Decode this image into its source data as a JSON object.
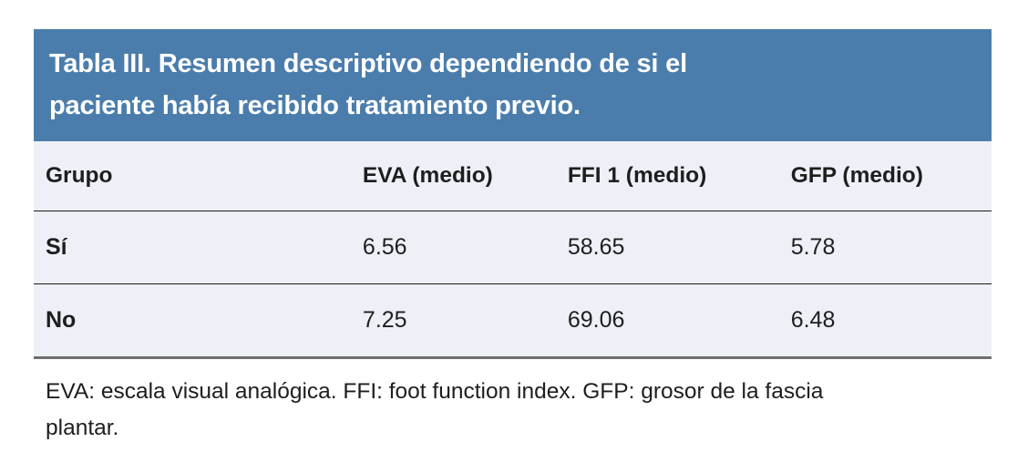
{
  "title": {
    "full_text": "Tabla III. Resumen descriptivo dependiendo de si el paciente había recibido tratamiento previo.",
    "lines": [
      "Tabla III. Resumen descriptivo dependiendo de si el",
      "paciente había recibido tratamiento previo."
    ]
  },
  "table": {
    "columns": [
      "Grupo",
      "EVA (medio)",
      "FFI 1 (medio)",
      "GFP (medio)"
    ],
    "rows": [
      [
        "Sí",
        "6.56",
        "58.65",
        "5.78"
      ],
      [
        "No",
        "7.25",
        "69.06",
        "6.48"
      ]
    ]
  },
  "footnote": {
    "full_text": "EVA: escala visual analógica. FFI: foot function index. GFP: grosor de la fascia plantar.",
    "lines": [
      "EVA: escala visual analógica. FFI: foot function index. GFP: grosor de la fascia",
      "plantar."
    ]
  },
  "colors": {
    "band_blue": "#4b7dac",
    "table_background": "#edf0f6",
    "dark_rule": "#1b1b1b",
    "bottom_rule_grey": "#6e6e6e",
    "title_text": "#ffffff",
    "body_text": "#1e1e1e",
    "page_background": "#ffffff"
  }
}
